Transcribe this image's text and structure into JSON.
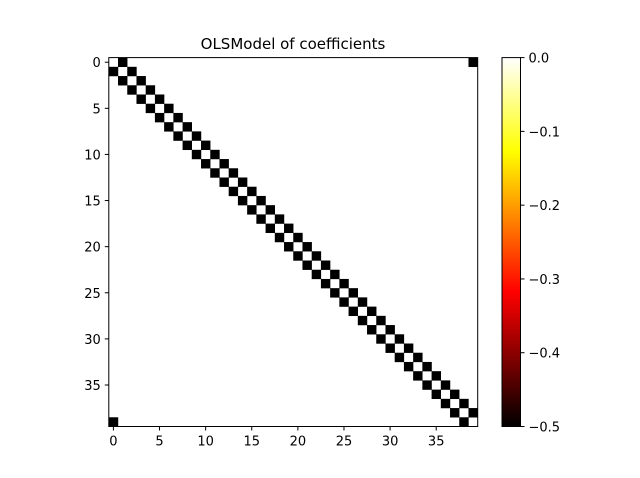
{
  "chart_data": {
    "type": "heatmap",
    "title": "OLSModel of coefficients",
    "xlabel": "",
    "ylabel": "",
    "size": 40,
    "value_min": -0.5,
    "value_max": 0.0,
    "colormap": "hot",
    "grid": false,
    "default_value": 0.0,
    "description_of_values": "cells equal to -0.5 are listed in nonzero_cells as [row, col]; all other cells are 0",
    "nonzero_value": -0.5,
    "nonzero_cells": [
      [
        0,
        1
      ],
      [
        0,
        39
      ],
      [
        1,
        0
      ],
      [
        1,
        2
      ],
      [
        2,
        1
      ],
      [
        2,
        3
      ],
      [
        3,
        2
      ],
      [
        3,
        4
      ],
      [
        4,
        3
      ],
      [
        4,
        5
      ],
      [
        5,
        4
      ],
      [
        5,
        6
      ],
      [
        6,
        5
      ],
      [
        6,
        7
      ],
      [
        7,
        6
      ],
      [
        7,
        8
      ],
      [
        8,
        7
      ],
      [
        8,
        9
      ],
      [
        9,
        8
      ],
      [
        9,
        10
      ],
      [
        10,
        9
      ],
      [
        10,
        11
      ],
      [
        11,
        10
      ],
      [
        11,
        12
      ],
      [
        12,
        11
      ],
      [
        12,
        13
      ],
      [
        13,
        12
      ],
      [
        13,
        14
      ],
      [
        14,
        13
      ],
      [
        14,
        15
      ],
      [
        15,
        14
      ],
      [
        15,
        16
      ],
      [
        16,
        15
      ],
      [
        16,
        17
      ],
      [
        17,
        16
      ],
      [
        17,
        18
      ],
      [
        18,
        17
      ],
      [
        18,
        19
      ],
      [
        19,
        18
      ],
      [
        19,
        20
      ],
      [
        20,
        19
      ],
      [
        20,
        21
      ],
      [
        21,
        20
      ],
      [
        21,
        22
      ],
      [
        22,
        21
      ],
      [
        22,
        23
      ],
      [
        23,
        22
      ],
      [
        23,
        24
      ],
      [
        24,
        23
      ],
      [
        24,
        25
      ],
      [
        25,
        24
      ],
      [
        25,
        26
      ],
      [
        26,
        25
      ],
      [
        26,
        27
      ],
      [
        27,
        26
      ],
      [
        27,
        28
      ],
      [
        28,
        27
      ],
      [
        28,
        29
      ],
      [
        29,
        28
      ],
      [
        29,
        30
      ],
      [
        30,
        29
      ],
      [
        30,
        31
      ],
      [
        31,
        30
      ],
      [
        31,
        32
      ],
      [
        32,
        31
      ],
      [
        32,
        33
      ],
      [
        33,
        32
      ],
      [
        33,
        34
      ],
      [
        34,
        33
      ],
      [
        34,
        35
      ],
      [
        35,
        34
      ],
      [
        35,
        36
      ],
      [
        36,
        35
      ],
      [
        36,
        37
      ],
      [
        37,
        36
      ],
      [
        37,
        38
      ],
      [
        38,
        37
      ],
      [
        38,
        39
      ],
      [
        39,
        0
      ],
      [
        39,
        38
      ]
    ],
    "x_ticks": [
      0,
      5,
      10,
      15,
      20,
      25,
      30,
      35
    ],
    "y_ticks": [
      0,
      5,
      10,
      15,
      20,
      25,
      30,
      35
    ],
    "colorbar_ticks": [
      "0.0",
      "−0.1",
      "−0.2",
      "−0.3",
      "−0.4",
      "−0.5"
    ],
    "colorbar_tick_values": [
      0.0,
      -0.1,
      -0.2,
      -0.3,
      -0.4,
      -0.5
    ]
  }
}
